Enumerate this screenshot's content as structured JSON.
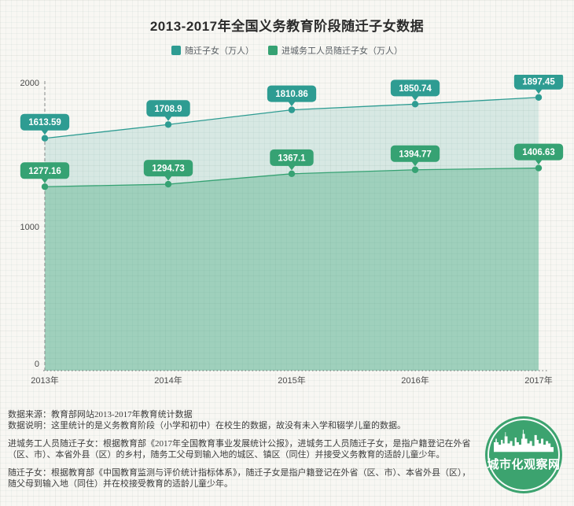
{
  "title": "2013-2017年全国义务教育阶段随迁子女数据",
  "legend": [
    {
      "label": "随迁子女（万人）",
      "color": "#2e9c92"
    },
    {
      "label": "进城务工人员随迁子女（万人）",
      "color": "#36a273"
    }
  ],
  "chart_data": {
    "type": "area",
    "title": "2013-2017年全国义务教育阶段随迁子女数据",
    "categories": [
      "2013年",
      "2014年",
      "2015年",
      "2016年",
      "2017年"
    ],
    "series": [
      {
        "name": "随迁子女（万人）",
        "color": "#2e9c92",
        "fill_opacity": 0.16,
        "values": [
          1613.59,
          1708.9,
          1810.86,
          1850.74,
          1897.45
        ]
      },
      {
        "name": "进城务工人员随迁子女（万人）",
        "color": "#36a273",
        "fill_opacity": 0.34,
        "values": [
          1277.16,
          1294.73,
          1367.1,
          1394.77,
          1406.63
        ]
      }
    ],
    "xlabel": "",
    "ylabel": "",
    "ylim": [
      0,
      2000
    ],
    "yticks": [
      0,
      1000,
      2000
    ],
    "grid": true,
    "legend_position": "top",
    "point_labels": true
  },
  "footer": {
    "p1": "数据来源：教育部网站2013-2017年教育统计数据",
    "p2": "数据说明：这里统计的是义务教育阶段（小学和初中）在校生的数据，故没有未入学和辍学儿童的数据。",
    "p3": "进城务工人员随迁子女：根据教育部《2017年全国教育事业发展统计公报》，进城务工人员随迁子女，是指户籍登记在外省（区、市）、本省外县（区）的乡村，随务工父母到输入地的城区、镇区（同住）并接受义务教育的适龄儿童少年。",
    "p4": "随迁子女：根据教育部《中国教育监测与评价统计指标体系》，随迁子女是指户籍登记在外省（区、市）、本省外县（区），随父母到输入地（同住）并在校接受教育的适龄儿童少年。"
  },
  "logo": {
    "text": "城市化观察网",
    "color": "#3ca36f"
  }
}
